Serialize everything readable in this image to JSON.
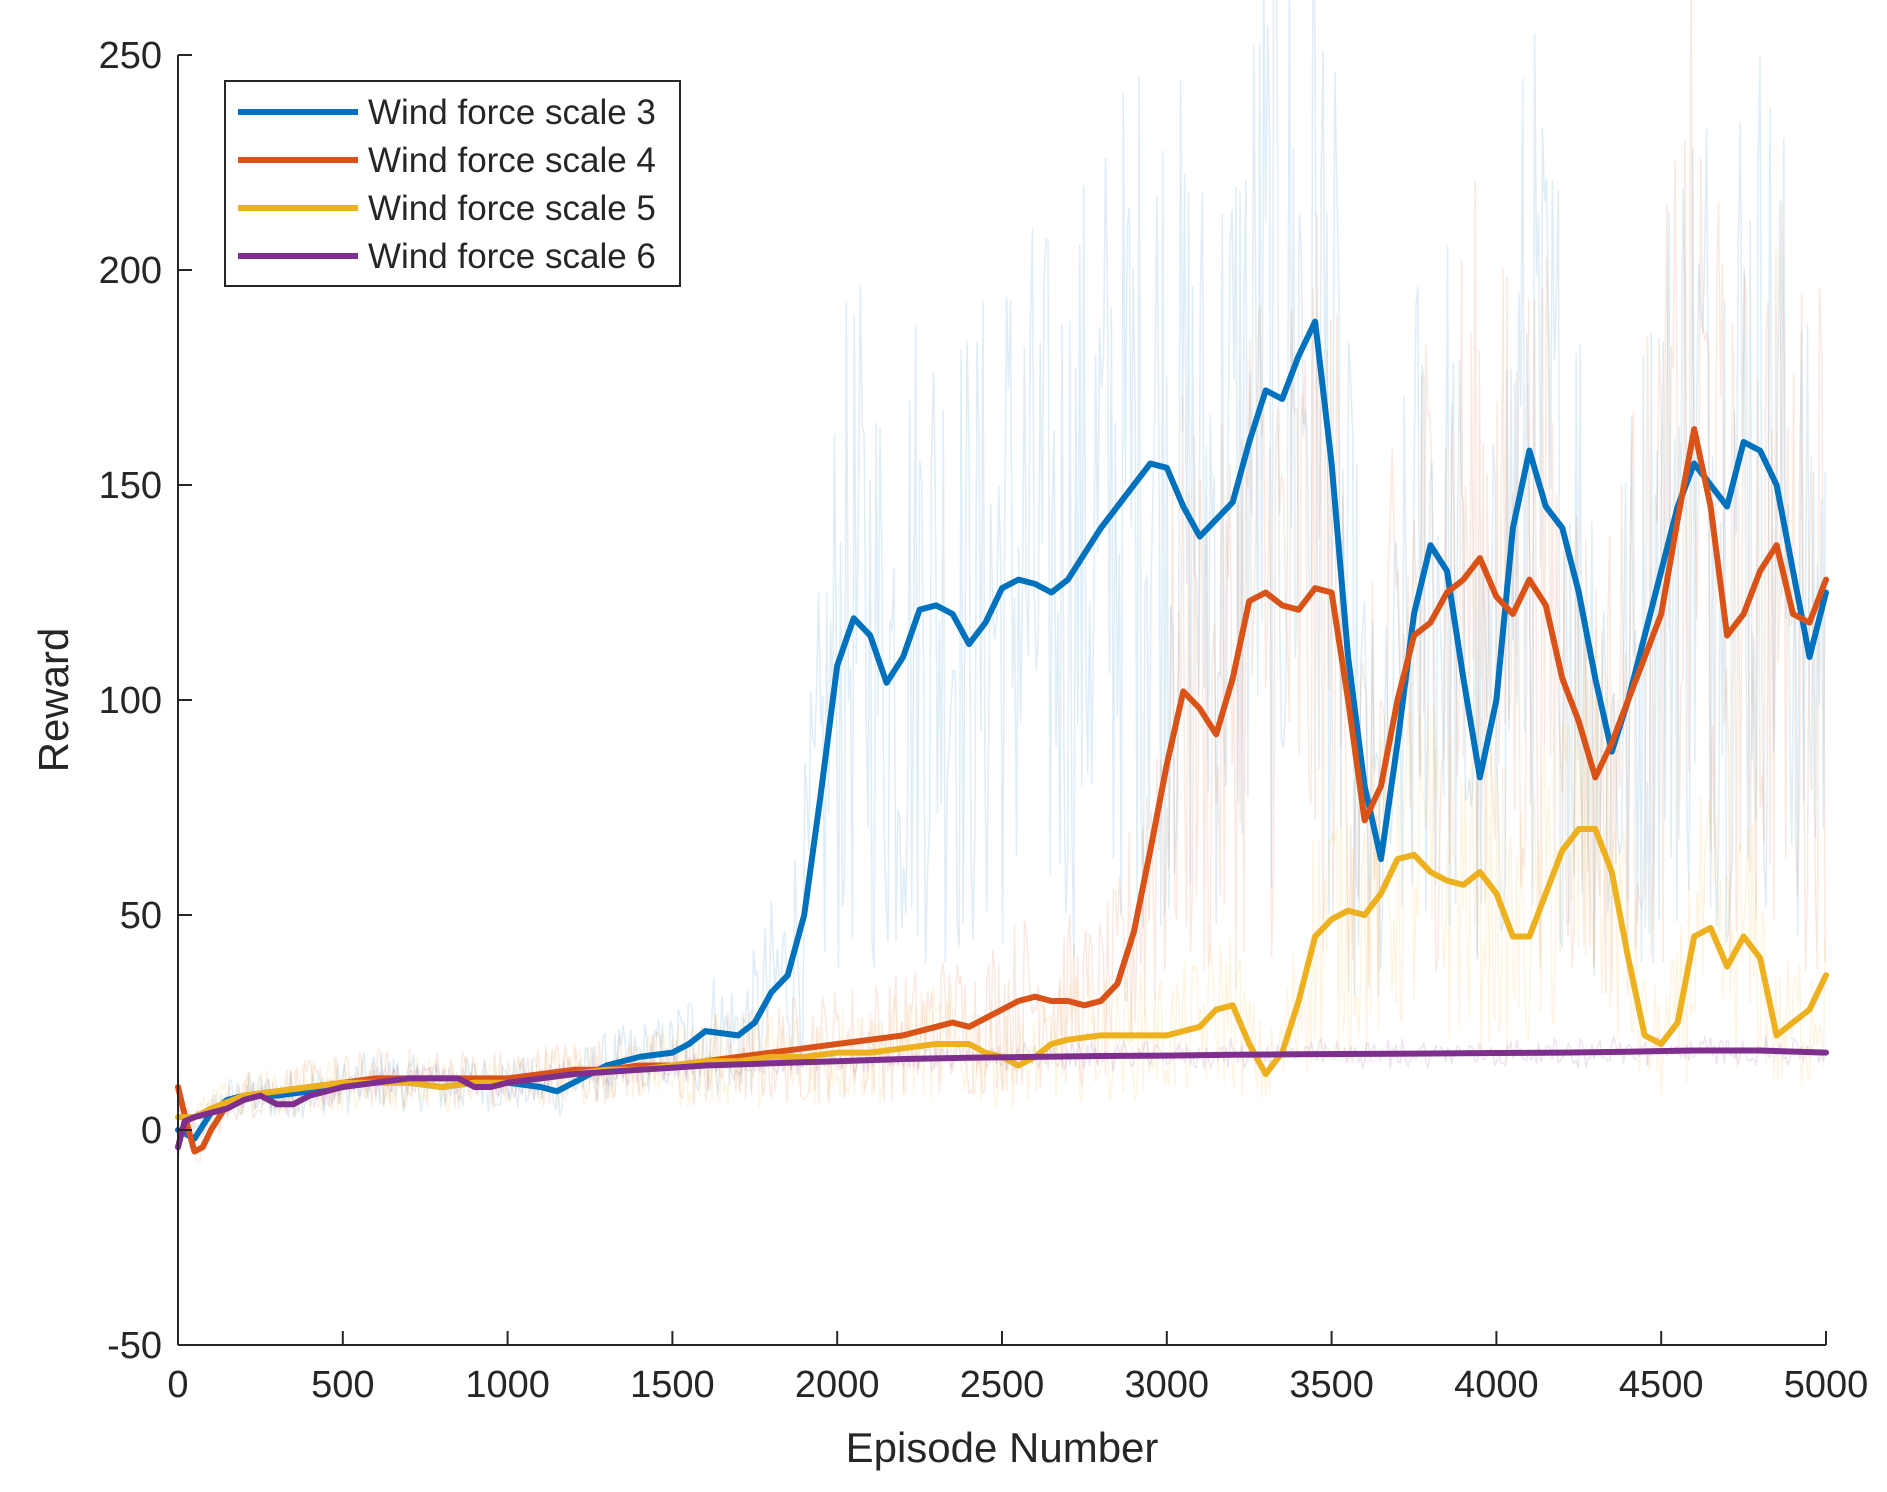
{
  "chart_data": {
    "type": "line",
    "title": "",
    "xlabel": "Episode Number",
    "ylabel": "Reward",
    "xlim": [
      0,
      5000
    ],
    "ylim": [
      -50,
      250
    ],
    "xticks": [
      0,
      500,
      1000,
      1500,
      2000,
      2500,
      3000,
      3500,
      4000,
      4500,
      5000
    ],
    "yticks": [
      -50,
      0,
      50,
      100,
      150,
      200,
      250
    ],
    "grid": false,
    "legend_position": "top-left",
    "series": [
      {
        "name": "Wind force scale 3",
        "color": "#0072BD",
        "x": [
          0,
          50,
          100,
          150,
          200,
          300,
          400,
          500,
          600,
          700,
          800,
          900,
          1000,
          1100,
          1150,
          1200,
          1300,
          1400,
          1500,
          1550,
          1600,
          1700,
          1750,
          1800,
          1850,
          1900,
          1950,
          2000,
          2050,
          2100,
          2150,
          2200,
          2250,
          2300,
          2350,
          2400,
          2450,
          2500,
          2550,
          2600,
          2650,
          2700,
          2750,
          2800,
          2850,
          2900,
          2950,
          3000,
          3050,
          3100,
          3150,
          3200,
          3250,
          3300,
          3350,
          3400,
          3450,
          3500,
          3550,
          3600,
          3650,
          3700,
          3750,
          3800,
          3850,
          3900,
          3950,
          4000,
          4050,
          4100,
          4150,
          4200,
          4250,
          4300,
          4350,
          4400,
          4450,
          4500,
          4550,
          4600,
          4650,
          4700,
          4750,
          4800,
          4850,
          4900,
          4950,
          5000
        ],
        "y": [
          0,
          -2,
          4,
          7,
          8,
          8,
          9,
          10,
          12,
          11,
          10,
          11,
          11,
          10,
          9,
          11,
          15,
          17,
          18,
          20,
          23,
          22,
          25,
          32,
          36,
          50,
          78,
          108,
          119,
          115,
          104,
          110,
          121,
          122,
          120,
          113,
          118,
          126,
          128,
          127,
          125,
          128,
          134,
          140,
          145,
          150,
          155,
          154,
          145,
          138,
          142,
          146,
          160,
          172,
          170,
          180,
          188,
          155,
          110,
          80,
          63,
          90,
          120,
          136,
          130,
          105,
          82,
          100,
          140,
          158,
          145,
          140,
          125,
          105,
          88,
          100,
          115,
          130,
          145,
          155,
          150,
          145,
          160,
          158,
          150,
          130,
          110,
          125
        ]
      },
      {
        "name": "Wind force scale 4",
        "color": "#D95319",
        "x": [
          0,
          25,
          50,
          75,
          100,
          150,
          200,
          300,
          400,
          500,
          600,
          700,
          800,
          900,
          1000,
          1100,
          1200,
          1300,
          1400,
          1500,
          1600,
          1700,
          1800,
          1900,
          2000,
          2100,
          2200,
          2300,
          2350,
          2400,
          2450,
          2500,
          2550,
          2600,
          2650,
          2700,
          2750,
          2800,
          2850,
          2900,
          2950,
          3000,
          3050,
          3100,
          3150,
          3200,
          3250,
          3300,
          3350,
          3400,
          3450,
          3500,
          3550,
          3600,
          3650,
          3700,
          3750,
          3800,
          3850,
          3900,
          3950,
          4000,
          4050,
          4100,
          4150,
          4200,
          4250,
          4300,
          4350,
          4400,
          4450,
          4500,
          4550,
          4600,
          4650,
          4700,
          4750,
          4800,
          4850,
          4900,
          4950,
          5000
        ],
        "y": [
          10,
          2,
          -5,
          -4,
          0,
          6,
          8,
          9,
          10,
          11,
          12,
          12,
          12,
          12,
          12,
          13,
          14,
          14,
          15,
          15,
          16,
          17,
          18,
          19,
          20,
          21,
          22,
          24,
          25,
          24,
          26,
          28,
          30,
          31,
          30,
          30,
          29,
          30,
          34,
          46,
          65,
          85,
          102,
          98,
          92,
          105,
          123,
          125,
          122,
          121,
          126,
          125,
          100,
          72,
          80,
          100,
          115,
          118,
          125,
          128,
          133,
          124,
          120,
          128,
          122,
          105,
          95,
          82,
          90,
          100,
          110,
          120,
          142,
          163,
          145,
          115,
          120,
          130,
          136,
          120,
          118,
          128
        ]
      },
      {
        "name": "Wind force scale 5",
        "color": "#EDB120",
        "x": [
          0,
          50,
          100,
          200,
          300,
          400,
          500,
          600,
          700,
          800,
          900,
          1000,
          1100,
          1200,
          1300,
          1400,
          1500,
          1600,
          1700,
          1800,
          1900,
          2000,
          2100,
          2200,
          2300,
          2400,
          2450,
          2500,
          2550,
          2600,
          2650,
          2700,
          2800,
          2900,
          3000,
          3100,
          3150,
          3200,
          3250,
          3300,
          3350,
          3400,
          3450,
          3500,
          3550,
          3600,
          3650,
          3700,
          3750,
          3800,
          3850,
          3900,
          3950,
          4000,
          4050,
          4100,
          4150,
          4200,
          4250,
          4300,
          4350,
          4400,
          4450,
          4500,
          4550,
          4600,
          4650,
          4700,
          4750,
          4800,
          4850,
          4900,
          4950,
          5000
        ],
        "y": [
          3,
          3,
          5,
          8,
          9,
          10,
          11,
          11,
          11,
          10,
          11,
          11,
          12,
          13,
          14,
          14,
          15,
          16,
          16,
          17,
          17,
          18,
          18,
          19,
          20,
          20,
          18,
          17,
          15,
          17,
          20,
          21,
          22,
          22,
          22,
          24,
          28,
          29,
          20,
          13,
          18,
          30,
          45,
          49,
          51,
          50,
          55,
          63,
          64,
          60,
          58,
          57,
          60,
          55,
          45,
          45,
          55,
          65,
          70,
          70,
          60,
          40,
          22,
          20,
          25,
          45,
          47,
          38,
          45,
          40,
          22,
          25,
          28,
          36
        ]
      },
      {
        "name": "Wind force scale 6",
        "color": "#7E2F8E",
        "x": [
          0,
          20,
          50,
          100,
          150,
          200,
          250,
          300,
          350,
          400,
          500,
          600,
          700,
          800,
          850,
          900,
          950,
          1000,
          1100,
          1200,
          1300,
          1400,
          1500,
          1600,
          1800,
          2000,
          2200,
          2400,
          2600,
          2800,
          3000,
          3200,
          3400,
          3600,
          3800,
          4000,
          4200,
          4400,
          4600,
          4800,
          5000
        ],
        "y": [
          -4,
          2,
          3,
          4,
          5,
          7,
          8,
          6,
          6,
          8,
          10,
          11,
          12,
          12,
          12,
          10,
          10,
          11,
          12,
          13,
          13.5,
          14,
          14.5,
          15,
          15.5,
          16,
          16.5,
          16.8,
          17,
          17.2,
          17.3,
          17.5,
          17.6,
          17.7,
          17.8,
          17.9,
          18,
          18.2,
          18.5,
          18.5,
          18
        ]
      }
    ]
  }
}
